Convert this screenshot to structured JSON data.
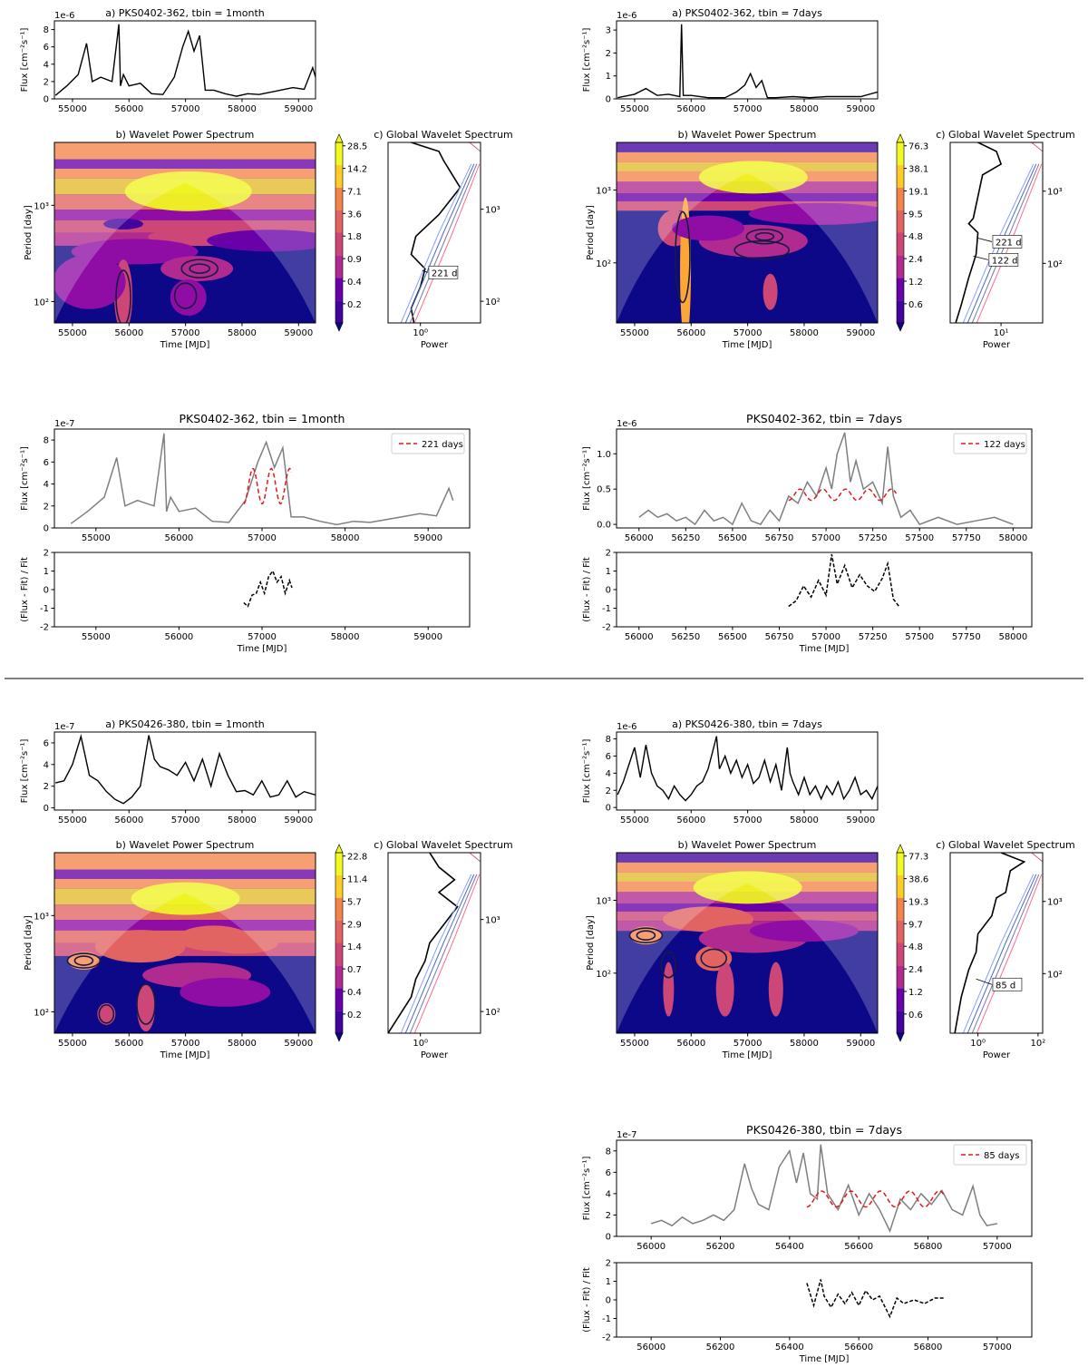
{
  "colormap": [
    "#0d0887",
    "#41049d",
    "#6a00a8",
    "#8f0da4",
    "#b12a90",
    "#cc4778",
    "#e16462",
    "#f2844b",
    "#fca636",
    "#fcce25",
    "#f0f921"
  ],
  "chart_data": [
    {
      "id": "p1a",
      "type": "line",
      "title": "a) PKS0402-362, tbin = 1month",
      "ylabel": "Flux [cm⁻²s⁻¹]",
      "offset_text": "1e-6",
      "xlim": [
        54680,
        59300
      ],
      "ylim": [
        0,
        9
      ],
      "xticks": [
        55000,
        56000,
        57000,
        58000,
        59000
      ],
      "yticks": [
        0,
        2,
        4,
        6,
        8
      ],
      "x": [
        54700,
        54900,
        55100,
        55250,
        55350,
        55500,
        55700,
        55820,
        55850,
        55900,
        56000,
        56200,
        56400,
        56600,
        56800,
        56950,
        57050,
        57150,
        57250,
        57350,
        57500,
        57700,
        57900,
        58100,
        58300,
        58600,
        58900,
        59100,
        59250,
        59300
      ],
      "y": [
        0.4,
        1.5,
        2.8,
        6.4,
        2.0,
        2.5,
        2.0,
        8.6,
        1.5,
        2.8,
        1.5,
        1.8,
        0.6,
        0.5,
        2.5,
        6.0,
        7.8,
        5.5,
        7.3,
        1.0,
        1.0,
        0.6,
        0.3,
        0.6,
        0.5,
        0.9,
        1.3,
        1.1,
        3.6,
        2.5
      ]
    },
    {
      "id": "p1b",
      "type": "heatmap",
      "title": "b) Wavelet Power Spectrum",
      "xlabel": "Time [MJD]",
      "ylabel": "Period [day]",
      "xlim": [
        54680,
        59300
      ],
      "ylim": [
        60,
        4500
      ],
      "yscale": "log",
      "xticks": [
        55000,
        56000,
        57000,
        58000,
        59000
      ],
      "yticks": [
        100,
        1000
      ],
      "ytick_labels": [
        "10²",
        "10³"
      ],
      "colorbar": [
        "28.5",
        "14.2",
        "7.1",
        "3.6",
        "1.8",
        "0.9",
        "0.4",
        "0.2"
      ]
    },
    {
      "id": "p1c",
      "type": "line",
      "title": "c) Global Wavelet Spectrum",
      "xlabel": "Power",
      "xscale": "log",
      "xticks": [
        "10⁰"
      ],
      "yticks": [
        "10³",
        "10²"
      ],
      "annotation": "221 d"
    },
    {
      "id": "p2a",
      "type": "line",
      "title": "a) PKS0402-362, tbin = 7days",
      "ylabel": "Flux [cm⁻²s⁻¹]",
      "offset_text": "1e-6",
      "xlim": [
        54680,
        59300
      ],
      "ylim": [
        0,
        3.4
      ],
      "xticks": [
        55000,
        56000,
        57000,
        58000,
        59000
      ],
      "yticks": [
        0,
        1,
        2,
        3
      ],
      "x": [
        54700,
        55000,
        55200,
        55400,
        55600,
        55800,
        55830,
        55860,
        56000,
        56300,
        56600,
        56800,
        56950,
        57050,
        57150,
        57250,
        57350,
        57500,
        57800,
        58100,
        58400,
        58700,
        59000,
        59300
      ],
      "y": [
        0.05,
        0.2,
        0.45,
        0.15,
        0.2,
        0.1,
        3.25,
        0.15,
        0.15,
        0.05,
        0.05,
        0.3,
        0.6,
        1.1,
        0.5,
        0.8,
        0.05,
        0.05,
        0.1,
        0.05,
        0.1,
        0.1,
        0.1,
        0.3
      ]
    },
    {
      "id": "p2b",
      "type": "heatmap",
      "title": "b) Wavelet Power Spectrum",
      "xlabel": "Time [MJD]",
      "ylabel": "Period [day]",
      "xlim": [
        54680,
        59300
      ],
      "ylim": [
        15,
        4500
      ],
      "yscale": "log",
      "xticks": [
        55000,
        56000,
        57000,
        58000,
        59000
      ],
      "yticks": [
        100,
        1000
      ],
      "ytick_labels": [
        "10²",
        "10³"
      ],
      "colorbar": [
        "76.3",
        "38.1",
        "19.1",
        "9.5",
        "4.8",
        "2.4",
        "1.2",
        "0.6"
      ]
    },
    {
      "id": "p2c",
      "type": "line",
      "title": "c) Global Wavelet Spectrum",
      "xlabel": "Power",
      "xscale": "log",
      "xticks": [
        "10¹"
      ],
      "yticks": [
        "10³",
        "10²"
      ],
      "annotation": [
        "221 d",
        "122 d"
      ]
    },
    {
      "id": "p3",
      "type": "line",
      "title": "PKS0402-362, tbin = 1month",
      "ylabel": "Flux [cm⁻²s⁻¹]",
      "offset_text": "1e-7",
      "xlim": [
        54500,
        59500
      ],
      "ylim": [
        0,
        9
      ],
      "xticks": [
        55000,
        56000,
        57000,
        58000,
        59000
      ],
      "yticks": [
        0,
        2,
        4,
        6,
        8
      ],
      "legend": "221 days",
      "x": [
        54700,
        54900,
        55100,
        55250,
        55350,
        55500,
        55700,
        55820,
        55850,
        55900,
        56000,
        56200,
        56400,
        56600,
        56800,
        56950,
        57050,
        57150,
        57250,
        57350,
        57500,
        57700,
        57900,
        58100,
        58300,
        58600,
        58900,
        59100,
        59250,
        59300
      ],
      "y": [
        0.4,
        1.5,
        2.8,
        6.4,
        2.0,
        2.5,
        2.0,
        8.6,
        1.5,
        2.8,
        1.5,
        1.8,
        0.6,
        0.5,
        2.5,
        6.0,
        7.8,
        5.5,
        7.3,
        1.0,
        1.0,
        0.6,
        0.3,
        0.6,
        0.5,
        0.9,
        1.3,
        1.1,
        3.6,
        2.5
      ],
      "fit": {
        "period": 221,
        "x0": 56780,
        "x1": 57360,
        "mean": 3.8,
        "amp": 1.6
      }
    },
    {
      "id": "p3r",
      "type": "line",
      "xlabel": "Time [MJD]",
      "ylabel": "(Flux - Fit) / Fit",
      "xlim": [
        54500,
        59500
      ],
      "ylim": [
        -2,
        2
      ],
      "xticks": [
        55000,
        56000,
        57000,
        58000,
        59000
      ],
      "yticks": [
        -2,
        -1,
        0,
        1,
        2
      ],
      "x": [
        56780,
        56830,
        56880,
        56930,
        56980,
        57030,
        57080,
        57130,
        57180,
        57230,
        57280,
        57330,
        57360
      ],
      "y": [
        -0.7,
        -0.9,
        -0.3,
        -0.2,
        0.4,
        -0.2,
        0.7,
        1.0,
        0.4,
        0.7,
        -0.2,
        0.5,
        0.1
      ]
    },
    {
      "id": "p4",
      "type": "line",
      "title": "PKS0402-362, tbin = 7days",
      "ylabel": "Flux [cm⁻²s⁻¹]",
      "offset_text": "1e-6",
      "xlim": [
        55880,
        58100
      ],
      "ylim": [
        -0.05,
        1.35
      ],
      "xticks": [
        56000,
        56250,
        56500,
        56750,
        57000,
        57250,
        57500,
        57750,
        58000
      ],
      "yticks": [
        0.0,
        0.5,
        1.0
      ],
      "legend": "122 days",
      "x": [
        56000,
        56050,
        56100,
        56150,
        56200,
        56250,
        56300,
        56350,
        56400,
        56450,
        56500,
        56550,
        56600,
        56650,
        56700,
        56750,
        56800,
        56850,
        56900,
        56950,
        57000,
        57030,
        57060,
        57100,
        57130,
        57160,
        57200,
        57250,
        57300,
        57330,
        57360,
        57400,
        57450,
        57500,
        57600,
        57700,
        57800,
        57900,
        58000
      ],
      "y": [
        0.1,
        0.2,
        0.1,
        0.15,
        0.05,
        0.1,
        0.0,
        0.2,
        0.05,
        0.1,
        0.0,
        0.3,
        0.05,
        0.0,
        0.2,
        0.05,
        0.4,
        0.3,
        0.6,
        0.4,
        0.8,
        0.5,
        1.0,
        1.3,
        0.6,
        0.9,
        0.5,
        0.6,
        0.3,
        1.1,
        0.4,
        0.1,
        0.2,
        0.0,
        0.1,
        0.0,
        0.05,
        0.1,
        0.0
      ],
      "fit": {
        "period": 122,
        "x0": 56800,
        "x1": 57380,
        "mean": 0.42,
        "amp": 0.08
      }
    },
    {
      "id": "p4r",
      "type": "line",
      "xlabel": "Time [MJD]",
      "ylabel": "(Flux - Fit) / Fit",
      "xlim": [
        55880,
        58100
      ],
      "ylim": [
        -2,
        2
      ],
      "xticks": [
        56000,
        56250,
        56500,
        56750,
        57000,
        57250,
        57500,
        57750,
        58000
      ],
      "yticks": [
        -2,
        -1,
        0,
        1,
        2
      ],
      "x": [
        56800,
        56840,
        56880,
        56920,
        56960,
        57000,
        57030,
        57060,
        57100,
        57140,
        57180,
        57220,
        57260,
        57300,
        57330,
        57360,
        57390
      ],
      "y": [
        -0.9,
        -0.6,
        0.2,
        -0.4,
        0.5,
        -0.3,
        1.9,
        0.3,
        1.3,
        0.1,
        0.8,
        0.2,
        -0.1,
        0.6,
        1.4,
        -0.5,
        -0.9
      ]
    },
    {
      "id": "p5a",
      "type": "line",
      "title": "a) PKS0426-380, tbin = 1month",
      "ylabel": "Flux [cm⁻²s⁻¹]",
      "offset_text": "1e-7",
      "xlim": [
        54680,
        59300
      ],
      "ylim": [
        -0.2,
        7.0
      ],
      "xticks": [
        55000,
        56000,
        57000,
        58000,
        59000
      ],
      "yticks": [
        0,
        2,
        4,
        6
      ],
      "x": [
        54700,
        54850,
        55000,
        55150,
        55300,
        55450,
        55600,
        55750,
        55900,
        56050,
        56200,
        56350,
        56450,
        56550,
        56700,
        56850,
        57000,
        57150,
        57300,
        57450,
        57600,
        57750,
        57900,
        58050,
        58200,
        58350,
        58500,
        58650,
        58800,
        58950,
        59100,
        59300
      ],
      "y": [
        2.3,
        2.5,
        4.0,
        6.6,
        3.0,
        2.5,
        1.5,
        0.8,
        0.4,
        1.0,
        2.0,
        6.7,
        4.5,
        3.8,
        3.5,
        3.0,
        4.2,
        2.5,
        4.5,
        2.0,
        5.0,
        3.0,
        1.5,
        1.6,
        1.2,
        2.5,
        1.0,
        1.2,
        2.5,
        1.0,
        1.5,
        1.2
      ]
    },
    {
      "id": "p5b",
      "type": "heatmap",
      "title": "b) Wavelet Power Spectrum",
      "xlabel": "Time [MJD]",
      "ylabel": "Period [day]",
      "xlim": [
        54680,
        59300
      ],
      "ylim": [
        60,
        4500
      ],
      "yscale": "log",
      "xticks": [
        55000,
        56000,
        57000,
        58000,
        59000
      ],
      "yticks": [
        100,
        1000
      ],
      "ytick_labels": [
        "10²",
        "10³"
      ],
      "colorbar": [
        "22.8",
        "11.4",
        "5.7",
        "2.9",
        "1.4",
        "0.7",
        "0.4",
        "0.2"
      ]
    },
    {
      "id": "p5c",
      "type": "line",
      "title": "c) Global Wavelet Spectrum",
      "xlabel": "Power",
      "xscale": "log",
      "xticks": [
        "10⁰"
      ],
      "yticks": [
        "10³",
        "10²"
      ]
    },
    {
      "id": "p6a",
      "type": "line",
      "title": "a) PKS0426-380, tbin = 7days",
      "ylabel": "Flux [cm⁻²s⁻¹]",
      "offset_text": "1e-6",
      "xlim": [
        54680,
        59300
      ],
      "ylim": [
        -0.3,
        8.8
      ],
      "xticks": [
        55000,
        56000,
        57000,
        58000,
        59000
      ],
      "yticks": [
        0,
        2,
        4,
        6,
        8
      ],
      "x": [
        54700,
        54800,
        54900,
        55000,
        55100,
        55200,
        55300,
        55400,
        55500,
        55600,
        55700,
        55800,
        55900,
        56000,
        56100,
        56200,
        56300,
        56400,
        56450,
        56500,
        56600,
        56700,
        56800,
        56900,
        57000,
        57100,
        57200,
        57300,
        57400,
        57500,
        57600,
        57700,
        57750,
        57800,
        57900,
        58000,
        58100,
        58200,
        58300,
        58400,
        58500,
        58600,
        58700,
        58800,
        58900,
        59000,
        59100,
        59200,
        59300
      ],
      "y": [
        1.5,
        3.0,
        5.0,
        7.0,
        3.5,
        7.3,
        4.0,
        2.5,
        2.0,
        1.0,
        2.5,
        1.5,
        0.8,
        1.5,
        2.5,
        3.0,
        4.5,
        7.0,
        8.3,
        4.5,
        6.0,
        4.0,
        5.5,
        3.5,
        5.0,
        2.8,
        3.5,
        5.5,
        3.0,
        5.0,
        2.0,
        7.0,
        4.0,
        3.0,
        1.5,
        3.5,
        1.5,
        2.5,
        1.0,
        2.5,
        1.5,
        3.0,
        1.0,
        2.0,
        3.5,
        1.5,
        2.0,
        1.0,
        2.5
      ]
    },
    {
      "id": "p6b",
      "type": "heatmap",
      "title": "b) Wavelet Power Spectrum",
      "xlabel": "Time [MJD]",
      "ylabel": "Period [day]",
      "xlim": [
        54680,
        59300
      ],
      "ylim": [
        15,
        4500
      ],
      "yscale": "log",
      "xticks": [
        55000,
        56000,
        57000,
        58000,
        59000
      ],
      "yticks": [
        100,
        1000
      ],
      "ytick_labels": [
        "10²",
        "10³"
      ],
      "colorbar": [
        "77.3",
        "38.6",
        "19.3",
        "9.7",
        "4.8",
        "2.4",
        "1.2",
        "0.6"
      ]
    },
    {
      "id": "p6c",
      "type": "line",
      "title": "c) Global Wavelet Spectrum",
      "xlabel": "Power",
      "xscale": "log",
      "xticks": [
        "10⁰",
        "10²"
      ],
      "yticks": [
        "10³",
        "10²"
      ],
      "annotation": "85 d"
    },
    {
      "id": "p7",
      "type": "line",
      "title": "PKS0426-380, tbin = 7days",
      "ylabel": "Flux [cm⁻²s⁻¹]",
      "offset_text": "1e-7",
      "xlim": [
        55900,
        57100
      ],
      "ylim": [
        0,
        9
      ],
      "xticks": [
        56000,
        56200,
        56400,
        56600,
        56800,
        57000
      ],
      "yticks": [
        0,
        2,
        4,
        6,
        8
      ],
      "legend": "85 days",
      "x": [
        56000,
        56030,
        56060,
        56090,
        56120,
        56150,
        56180,
        56210,
        56240,
        56270,
        56290,
        56310,
        56340,
        56370,
        56400,
        56420,
        56440,
        56460,
        56480,
        56490,
        56510,
        56540,
        56570,
        56600,
        56630,
        56660,
        56690,
        56720,
        56750,
        56780,
        56810,
        56840,
        56870,
        56900,
        56930,
        56950,
        56970,
        57000
      ],
      "y": [
        1.2,
        1.5,
        1.0,
        1.8,
        1.2,
        1.5,
        2.0,
        1.5,
        2.5,
        6.8,
        4.5,
        3.0,
        2.5,
        6.5,
        8.0,
        5.0,
        7.8,
        4.0,
        3.5,
        8.6,
        4.0,
        2.5,
        4.8,
        2.0,
        4.0,
        2.5,
        0.5,
        3.5,
        2.5,
        4.0,
        3.0,
        4.3,
        2.5,
        2.0,
        4.7,
        2.0,
        1.0,
        1.2
      ],
      "fit": {
        "period": 85,
        "x0": 56450,
        "x1": 56850,
        "mean": 3.5,
        "amp": 0.75
      }
    },
    {
      "id": "p7r",
      "type": "line",
      "xlabel": "Time [MJD]",
      "ylabel": "(Flux - Fit) / Fit",
      "xlim": [
        55900,
        57100
      ],
      "ylim": [
        -2,
        2
      ],
      "xticks": [
        56000,
        56200,
        56400,
        56600,
        56800,
        57000
      ],
      "yticks": [
        -2,
        -1,
        0,
        1,
        2
      ],
      "x": [
        56450,
        56470,
        56490,
        56500,
        56520,
        56540,
        56560,
        56580,
        56600,
        56620,
        56640,
        56660,
        56690,
        56710,
        56730,
        56760,
        56790,
        56820,
        56850
      ],
      "y": [
        0.9,
        -0.3,
        1.1,
        0.2,
        -0.4,
        0.3,
        -0.2,
        0.4,
        -0.3,
        0.5,
        0.0,
        0.2,
        -0.9,
        0.1,
        -0.2,
        0.0,
        -0.2,
        0.1,
        0.1
      ]
    }
  ]
}
